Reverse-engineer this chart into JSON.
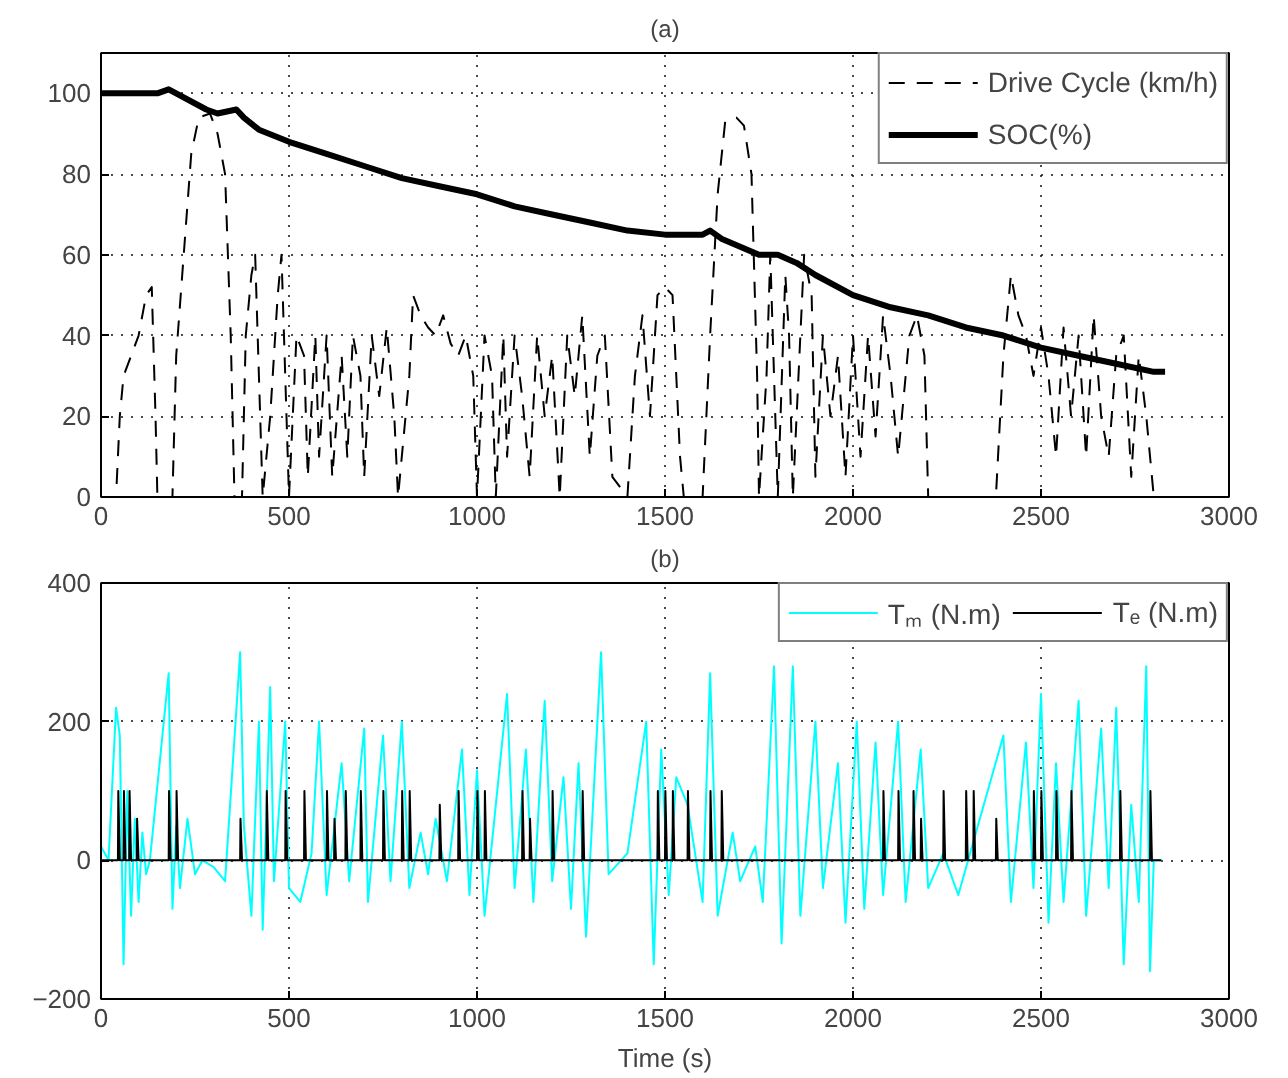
{
  "chart_data": [
    {
      "type": "line",
      "title": "(a)",
      "xlim": [
        0,
        3000
      ],
      "ylim": [
        0,
        110
      ],
      "xticks": [
        0,
        500,
        1000,
        1500,
        2000,
        2500,
        3000
      ],
      "yticks": [
        0,
        20,
        40,
        60,
        80,
        100
      ],
      "grid": true,
      "legend": "top right",
      "series": [
        {
          "name": "Drive Cycle (km/h)",
          "color": "#000000",
          "line_style": "dashed",
          "x": [
            0,
            40,
            50,
            60,
            80,
            100,
            120,
            135,
            145,
            150,
            190,
            200,
            220,
            240,
            260,
            290,
            310,
            330,
            345,
            355,
            375,
            385,
            400,
            410,
            420,
            430,
            450,
            470,
            480,
            490,
            500,
            520,
            540,
            550,
            570,
            580,
            600,
            615,
            640,
            655,
            670,
            690,
            700,
            720,
            740,
            760,
            780,
            790,
            820,
            830,
            850,
            870,
            890,
            910,
            930,
            950,
            970,
            990,
            1000,
            1020,
            1040,
            1050,
            1070,
            1080,
            1100,
            1120,
            1140,
            1160,
            1180,
            1200,
            1220,
            1240,
            1260,
            1280,
            1300,
            1320,
            1340,
            1360,
            1400,
            1420,
            1440,
            1460,
            1480,
            1500,
            1520,
            1540,
            1550,
            1600,
            1620,
            1640,
            1660,
            1690,
            1710,
            1730,
            1745,
            1750,
            1770,
            1780,
            1790,
            1800,
            1820,
            1830,
            1840,
            1870,
            1890,
            1900,
            1920,
            1940,
            1960,
            1980,
            2000,
            2020,
            2040,
            2060,
            2080,
            2100,
            2120,
            2150,
            2170,
            2190,
            2200,
            2380,
            2400,
            2420,
            2440,
            2460,
            2480,
            2500,
            2520,
            2540,
            2560,
            2580,
            2600,
            2620,
            2640,
            2660,
            2680,
            2700,
            2720,
            2740,
            2760,
            2780,
            2800,
            2830
          ],
          "values": [
            0,
            0,
            20,
            30,
            35,
            40,
            50,
            52,
            20,
            0,
            0,
            35,
            60,
            85,
            94,
            95,
            90,
            80,
            40,
            0,
            0,
            40,
            55,
            60,
            30,
            0,
            20,
            50,
            60,
            30,
            0,
            40,
            35,
            5,
            40,
            10,
            40,
            5,
            35,
            10,
            40,
            30,
            5,
            40,
            25,
            42,
            20,
            0,
            30,
            50,
            45,
            42,
            40,
            45,
            38,
            35,
            40,
            30,
            0,
            40,
            30,
            0,
            40,
            10,
            40,
            25,
            5,
            40,
            20,
            35,
            0,
            40,
            25,
            45,
            10,
            35,
            40,
            5,
            0,
            30,
            45,
            20,
            50,
            52,
            50,
            10,
            0,
            0,
            40,
            75,
            93,
            94,
            92,
            80,
            30,
            0,
            30,
            60,
            30,
            0,
            55,
            40,
            0,
            60,
            50,
            5,
            40,
            20,
            35,
            5,
            40,
            10,
            40,
            15,
            45,
            30,
            10,
            40,
            45,
            35,
            0,
            0,
            35,
            55,
            45,
            40,
            30,
            42,
            30,
            10,
            42,
            20,
            40,
            10,
            45,
            20,
            10,
            35,
            40,
            5,
            35,
            20,
            0,
            0
          ]
        },
        {
          "name": "SOC(%)",
          "color": "#000000",
          "line_style": "solid",
          "x": [
            0,
            150,
            180,
            280,
            310,
            360,
            380,
            420,
            500,
            600,
            700,
            800,
            900,
            1000,
            1100,
            1200,
            1300,
            1400,
            1500,
            1600,
            1620,
            1650,
            1700,
            1750,
            1800,
            1850,
            1900,
            2000,
            2100,
            2200,
            2300,
            2400,
            2500,
            2600,
            2700,
            2800,
            2830
          ],
          "values": [
            100,
            100,
            101,
            96,
            95,
            96,
            94,
            91,
            88,
            85,
            82,
            79,
            77,
            75,
            72,
            70,
            68,
            66,
            65,
            65,
            66,
            64,
            62,
            60,
            60,
            58,
            55,
            50,
            47,
            45,
            42,
            40,
            37,
            35,
            33,
            31,
            31
          ]
        }
      ]
    },
    {
      "type": "line",
      "title": "(b)",
      "xlabel": "Time (s)",
      "xlim": [
        0,
        3000
      ],
      "ylim": [
        -200,
        400
      ],
      "xticks": [
        0,
        500,
        1000,
        1500,
        2000,
        2500,
        3000
      ],
      "yticks": [
        {
          "value": -200,
          "label": "−200"
        },
        0,
        200,
        400
      ],
      "grid": true,
      "legend": "top right",
      "series": [
        {
          "name": "Tₘ (N.m)",
          "color": "#00ffff",
          "line_style": "solid",
          "x": [
            0,
            20,
            40,
            50,
            60,
            70,
            80,
            90,
            100,
            110,
            120,
            130,
            180,
            190,
            200,
            210,
            230,
            250,
            270,
            300,
            330,
            370,
            380,
            400,
            420,
            430,
            450,
            460,
            490,
            500,
            530,
            560,
            580,
            600,
            640,
            660,
            700,
            710,
            750,
            770,
            800,
            820,
            850,
            870,
            890,
            920,
            960,
            980,
            1000,
            1020,
            1080,
            1100,
            1130,
            1150,
            1180,
            1200,
            1230,
            1250,
            1270,
            1290,
            1330,
            1350,
            1400,
            1450,
            1470,
            1490,
            1510,
            1530,
            1560,
            1600,
            1620,
            1640,
            1680,
            1700,
            1740,
            1760,
            1790,
            1810,
            1840,
            1860,
            1900,
            1920,
            1960,
            1980,
            2010,
            2030,
            2060,
            2080,
            2120,
            2140,
            2180,
            2200,
            2240,
            2280,
            2400,
            2420,
            2460,
            2480,
            2500,
            2520,
            2540,
            2560,
            2600,
            2620,
            2660,
            2680,
            2700,
            2720,
            2740,
            2760,
            2780,
            2790,
            2800,
            2820
          ],
          "values": [
            20,
            0,
            220,
            180,
            -150,
            100,
            -80,
            60,
            -60,
            40,
            -20,
            0,
            270,
            -70,
            50,
            -40,
            60,
            -20,
            0,
            -10,
            -30,
            300,
            50,
            -80,
            200,
            -100,
            250,
            -30,
            200,
            -40,
            -60,
            10,
            200,
            -50,
            140,
            -30,
            190,
            -60,
            180,
            -30,
            200,
            -40,
            40,
            -20,
            60,
            -30,
            160,
            -50,
            130,
            -80,
            240,
            -40,
            160,
            -60,
            230,
            -30,
            120,
            -70,
            140,
            -110,
            300,
            -20,
            10,
            200,
            -150,
            160,
            -50,
            120,
            80,
            -60,
            270,
            -80,
            40,
            -30,
            20,
            -60,
            280,
            -120,
            280,
            -80,
            200,
            -40,
            140,
            -90,
            200,
            -70,
            170,
            -50,
            200,
            -60,
            160,
            -40,
            10,
            -50,
            180,
            -60,
            170,
            -40,
            240,
            -90,
            140,
            -60,
            230,
            -80,
            190,
            -40,
            220,
            -150,
            80,
            -60,
            280,
            -160,
            0,
            0
          ]
        },
        {
          "name": "Tₑ (N.m)",
          "color": "#000000",
          "line_style": "solid",
          "x": [
            0,
            45,
            46,
            50,
            60,
            61,
            65,
            75,
            76,
            80,
            95,
            96,
            100,
            180,
            181,
            185,
            200,
            201,
            205,
            370,
            371,
            375,
            440,
            441,
            445,
            490,
            491,
            495,
            540,
            541,
            545,
            600,
            601,
            605,
            620,
            621,
            625,
            650,
            651,
            655,
            690,
            691,
            695,
            750,
            751,
            755,
            800,
            801,
            805,
            820,
            821,
            825,
            900,
            901,
            905,
            950,
            951,
            955,
            1000,
            1001,
            1005,
            1020,
            1021,
            1025,
            1120,
            1121,
            1125,
            1140,
            1141,
            1145,
            1200,
            1201,
            1205,
            1280,
            1281,
            1285,
            1480,
            1481,
            1485,
            1500,
            1501,
            1505,
            1520,
            1521,
            1525,
            1560,
            1561,
            1565,
            1620,
            1621,
            1625,
            1650,
            1651,
            1655,
            2080,
            2081,
            2085,
            2120,
            2121,
            2125,
            2160,
            2161,
            2165,
            2180,
            2181,
            2185,
            2240,
            2241,
            2245,
            2300,
            2301,
            2305,
            2320,
            2321,
            2325,
            2380,
            2381,
            2385,
            2480,
            2481,
            2485,
            2500,
            2501,
            2505,
            2540,
            2541,
            2545,
            2580,
            2581,
            2585,
            2710,
            2711,
            2715,
            2790,
            2791,
            2795,
            2820
          ],
          "values": [
            0,
            0,
            100,
            0,
            0,
            100,
            0,
            0,
            100,
            0,
            0,
            60,
            0,
            0,
            100,
            0,
            0,
            100,
            0,
            0,
            60,
            0,
            0,
            100,
            0,
            0,
            100,
            0,
            0,
            100,
            0,
            0,
            100,
            0,
            0,
            60,
            0,
            0,
            100,
            0,
            0,
            100,
            0,
            0,
            100,
            0,
            0,
            100,
            0,
            0,
            100,
            0,
            0,
            80,
            0,
            0,
            100,
            0,
            0,
            100,
            0,
            0,
            100,
            0,
            0,
            100,
            0,
            0,
            60,
            0,
            0,
            100,
            0,
            0,
            100,
            0,
            0,
            100,
            0,
            0,
            100,
            0,
            0,
            100,
            0,
            0,
            100,
            0,
            0,
            100,
            0,
            0,
            100,
            0,
            0,
            100,
            0,
            0,
            100,
            0,
            0,
            100,
            0,
            0,
            60,
            0,
            0,
            100,
            0,
            0,
            100,
            0,
            0,
            100,
            0,
            0,
            60,
            0,
            0,
            100,
            0,
            0,
            100,
            0,
            0,
            100,
            0,
            0,
            100,
            0,
            0,
            100,
            0,
            0,
            100,
            0,
            0
          ]
        }
      ]
    }
  ]
}
